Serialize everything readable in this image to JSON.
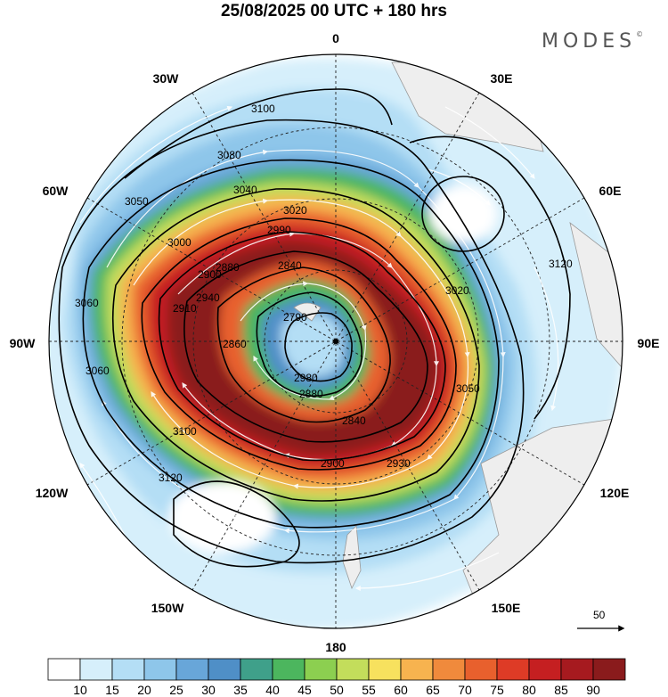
{
  "title": "25/08/2025  00 UTC  + 180 hrs",
  "brand": "MODES",
  "brand_mark": "©",
  "longitude_labels": {
    "lon_0": "0",
    "lon_30e": "30E",
    "lon_60e": "60E",
    "lon_90e": "90E",
    "lon_120e": "120E",
    "lon_150e": "150E",
    "lon_180": "180",
    "lon_150w": "150W",
    "lon_120w": "120W",
    "lon_90w": "90W",
    "lon_60w": "60W",
    "lon_30w": "30W"
  },
  "contour_labels": [
    "3100",
    "3080",
    "3050",
    "3040",
    "3020",
    "3000",
    "2990",
    "2940",
    "2900",
    "2880",
    "2840",
    "2790",
    "2910",
    "3060",
    "3120",
    "2980",
    "2860",
    "2880",
    "2840",
    "2900",
    "2930",
    "3050",
    "3060",
    "3100",
    "3120",
    "3020"
  ],
  "reference_vector": {
    "label": "50"
  },
  "colorbar": {
    "colors": [
      "#ffffff",
      "#d6effb",
      "#b4def5",
      "#8ec6ea",
      "#68a6d9",
      "#4f8fc7",
      "#3fa08a",
      "#4cb65e",
      "#8ccf50",
      "#c3dd5b",
      "#f7e15e",
      "#f7b34f",
      "#f08a3c",
      "#e8602d",
      "#de3b26",
      "#c51f21",
      "#a61a1f",
      "#8a1b1c"
    ],
    "ticks": [
      "10",
      "15",
      "20",
      "25",
      "30",
      "35",
      "40",
      "45",
      "50",
      "55",
      "60",
      "65",
      "70",
      "75",
      "80",
      "85",
      "90"
    ]
  }
}
